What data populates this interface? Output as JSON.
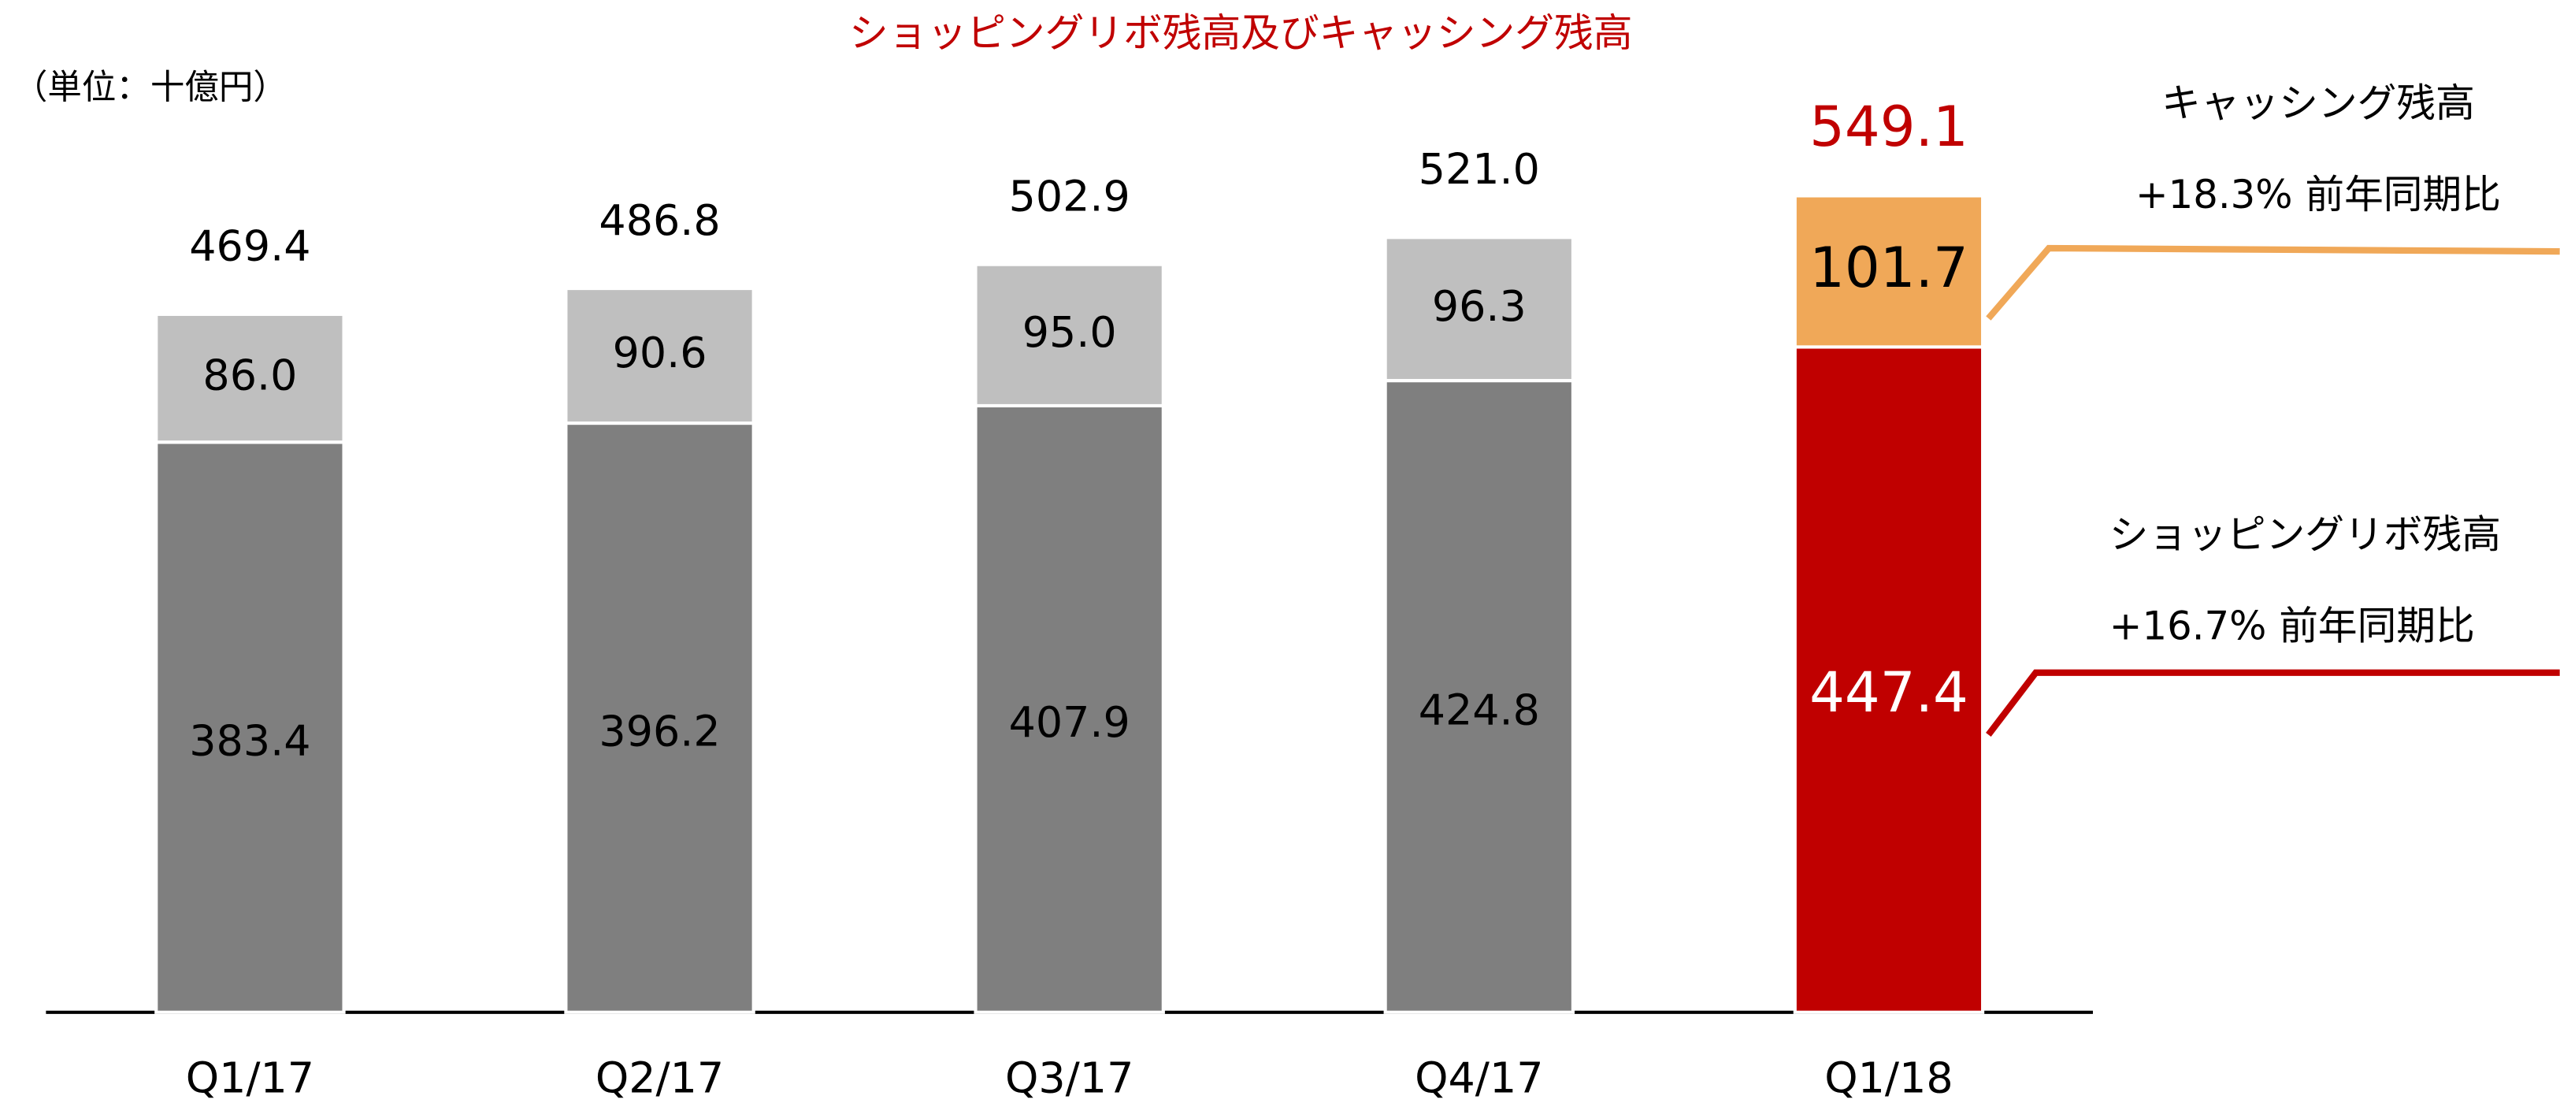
{
  "chart_data": {
    "type": "stacked_bar",
    "title": "ショッピングリボ残高及びキャッシング残高",
    "unit_label": "（単位：十億円）",
    "categories": [
      "Q1/17",
      "Q2/17",
      "Q3/17",
      "Q4/17",
      "Q1/18"
    ],
    "series": [
      {
        "name": "ショッピングリボ残高",
        "values": [
          383.4,
          396.2,
          407.9,
          424.8,
          447.4
        ],
        "value_labels": [
          "383.4",
          "396.2",
          "407.9",
          "424.8",
          "447.4"
        ],
        "colors": [
          "#7f7f7f",
          "#7f7f7f",
          "#7f7f7f",
          "#7f7f7f",
          "#c00000"
        ]
      },
      {
        "name": "キャッシング残高",
        "values": [
          86.0,
          90.6,
          95.0,
          96.3,
          101.7
        ],
        "value_labels": [
          "86.0",
          "90.6",
          "95.0",
          "96.3",
          "101.7"
        ],
        "colors": [
          "#bfbfbf",
          "#bfbfbf",
          "#bfbfbf",
          "#bfbfbf",
          "#f0a858"
        ]
      }
    ],
    "totals": {
      "values": [
        469.4,
        486.8,
        502.9,
        521.0,
        549.1
      ],
      "value_labels": [
        "469.4",
        "486.8",
        "502.9",
        "521.0",
        "549.1"
      ],
      "colors": [
        "#000000",
        "#000000",
        "#000000",
        "#000000",
        "#c00000"
      ]
    },
    "annotations": {
      "cashing_name": "キャッシング残高",
      "cashing_growth": "+18.3% 前年同期比",
      "shopping_name": "ショッピングリボ残高",
      "shopping_growth": "+16.7% 前年同期比"
    },
    "ylim": [
      0,
      650
    ]
  }
}
